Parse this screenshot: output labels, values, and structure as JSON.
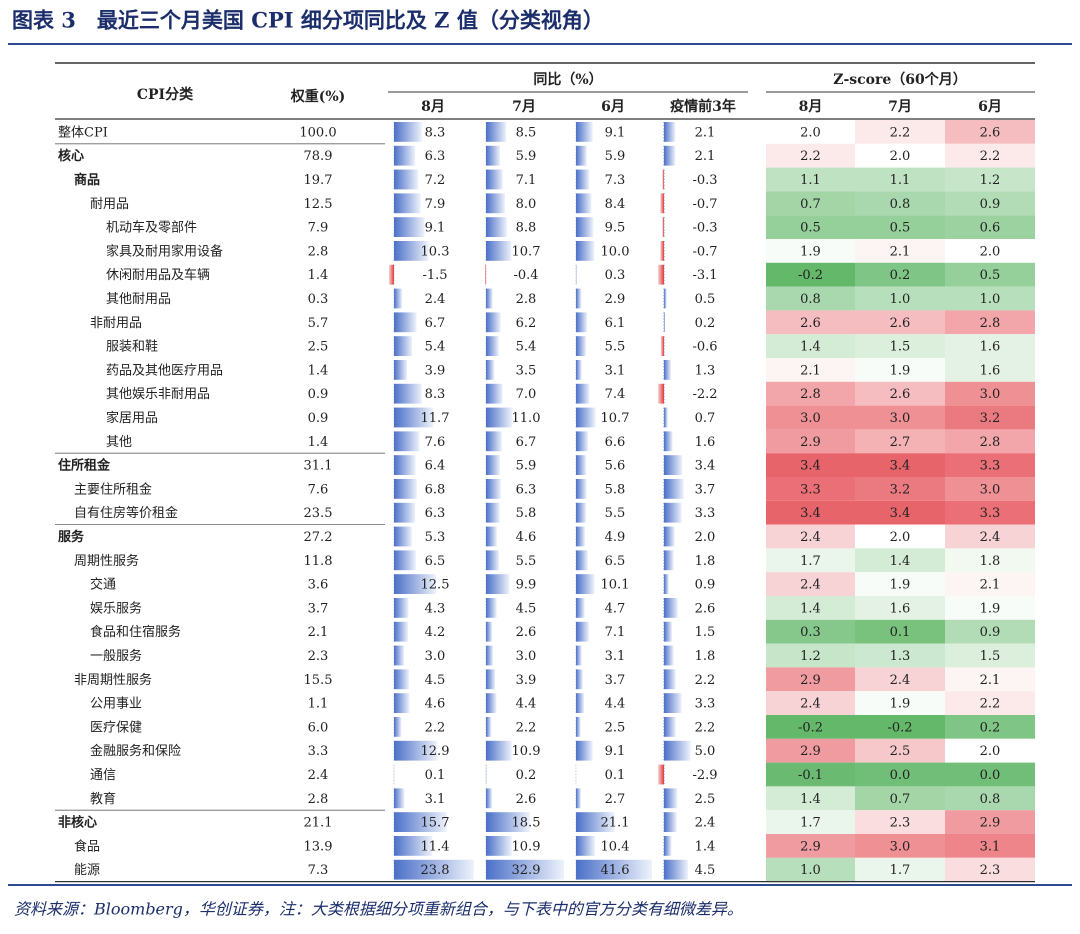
{
  "header": {
    "title": "图表 3　最近三个月美国 CPI 细分项同比及 Z 值（分类视角）"
  },
  "table": {
    "columns": {
      "category": "CPI分类",
      "weight": "权重(%)",
      "yoy": "同比（%）",
      "zscore": "Z-score（60个月）",
      "yoy_sub": [
        "8月",
        "7月",
        "6月",
        "疫情前3年"
      ],
      "z_sub": [
        "8月",
        "7月",
        "6月"
      ]
    },
    "rows": [
      [
        "整体CPI",
        "100.0",
        "8.3",
        "8.5",
        "9.1",
        "2.1",
        "2.0",
        "2.2",
        "2.6"
      ],
      [
        "核心",
        "78.9",
        "6.3",
        "5.9",
        "5.9",
        "2.1",
        "2.2",
        "2.0",
        "2.2"
      ],
      [
        "商品",
        "19.7",
        "7.2",
        "7.1",
        "7.3",
        "-0.3",
        "1.1",
        "1.1",
        "1.2"
      ],
      [
        "耐用品",
        "12.5",
        "7.9",
        "8.0",
        "8.4",
        "-0.7",
        "0.7",
        "0.8",
        "0.9"
      ],
      [
        "机动车及零部件",
        "7.9",
        "9.1",
        "8.8",
        "9.5",
        "-0.3",
        "0.5",
        "0.5",
        "0.6"
      ],
      [
        "家具及耐用家用设备",
        "2.8",
        "10.3",
        "10.7",
        "10.0",
        "-0.7",
        "1.9",
        "2.1",
        "2.0"
      ],
      [
        "休闲耐用品及车辆",
        "1.4",
        "-1.5",
        "-0.4",
        "0.3",
        "-3.1",
        "-0.2",
        "0.2",
        "0.5"
      ],
      [
        "其他耐用品",
        "0.3",
        "2.4",
        "2.8",
        "2.9",
        "0.5",
        "0.8",
        "1.0",
        "1.0"
      ],
      [
        "非耐用品",
        "5.7",
        "6.7",
        "6.2",
        "6.1",
        "0.2",
        "2.6",
        "2.6",
        "2.8"
      ],
      [
        "服装和鞋",
        "2.5",
        "5.4",
        "5.4",
        "5.5",
        "-0.6",
        "1.4",
        "1.5",
        "1.6"
      ],
      [
        "药品及其他医疗用品",
        "1.4",
        "3.9",
        "3.5",
        "3.1",
        "1.3",
        "2.1",
        "1.9",
        "1.6"
      ],
      [
        "其他娱乐非耐用品",
        "0.9",
        "8.3",
        "7.0",
        "7.4",
        "-2.2",
        "2.8",
        "2.6",
        "3.0"
      ],
      [
        "家居用品",
        "0.9",
        "11.7",
        "11.0",
        "10.7",
        "0.7",
        "3.0",
        "3.0",
        "3.2"
      ],
      [
        "其他",
        "1.4",
        "7.6",
        "6.7",
        "6.6",
        "1.6",
        "2.9",
        "2.7",
        "2.8"
      ],
      [
        "住所租金",
        "31.1",
        "6.4",
        "5.9",
        "5.6",
        "3.4",
        "3.4",
        "3.4",
        "3.3"
      ],
      [
        "主要住所租金",
        "7.6",
        "6.8",
        "6.3",
        "5.8",
        "3.7",
        "3.3",
        "3.2",
        "3.0"
      ],
      [
        "自有住房等价租金",
        "23.5",
        "6.3",
        "5.8",
        "5.5",
        "3.3",
        "3.4",
        "3.4",
        "3.3"
      ],
      [
        "服务",
        "27.2",
        "5.3",
        "4.6",
        "4.9",
        "2.0",
        "2.4",
        "2.0",
        "2.4"
      ],
      [
        "周期性服务",
        "11.8",
        "6.5",
        "5.5",
        "6.5",
        "1.8",
        "1.7",
        "1.4",
        "1.8"
      ],
      [
        "交通",
        "3.6",
        "12.5",
        "9.9",
        "10.1",
        "0.9",
        "2.4",
        "1.9",
        "2.1"
      ],
      [
        "娱乐服务",
        "3.7",
        "4.3",
        "4.5",
        "4.7",
        "2.6",
        "1.4",
        "1.6",
        "1.9"
      ],
      [
        "食品和住宿服务",
        "2.1",
        "4.2",
        "2.6",
        "7.1",
        "1.5",
        "0.3",
        "0.1",
        "0.9"
      ],
      [
        "一般服务",
        "2.3",
        "3.0",
        "3.0",
        "3.1",
        "1.8",
        "1.2",
        "1.3",
        "1.5"
      ],
      [
        "非周期性服务",
        "15.5",
        "4.5",
        "3.9",
        "3.7",
        "2.2",
        "2.9",
        "2.4",
        "2.1"
      ],
      [
        "公用事业",
        "1.1",
        "4.6",
        "4.4",
        "4.4",
        "3.3",
        "2.4",
        "1.9",
        "2.2"
      ],
      [
        "医疗保健",
        "6.0",
        "2.2",
        "2.2",
        "2.5",
        "2.2",
        "-0.2",
        "-0.2",
        "0.2"
      ],
      [
        "金融服务和保险",
        "3.3",
        "12.9",
        "10.9",
        "9.1",
        "5.0",
        "2.9",
        "2.5",
        "2.0"
      ],
      [
        "通信",
        "2.4",
        "0.1",
        "0.2",
        "0.1",
        "-2.9",
        "-0.1",
        "0.0",
        "0.0"
      ],
      [
        "教育",
        "2.8",
        "3.1",
        "2.6",
        "2.7",
        "2.5",
        "1.4",
        "0.7",
        "0.8"
      ],
      [
        "非核心",
        "21.1",
        "15.7",
        "18.5",
        "21.1",
        "2.4",
        "1.7",
        "2.3",
        "2.9"
      ],
      [
        "食品",
        "13.9",
        "11.4",
        "10.9",
        "10.4",
        "1.4",
        "2.9",
        "3.0",
        "3.1"
      ],
      [
        "能源",
        "7.3",
        "23.8",
        "32.9",
        "41.6",
        "4.5",
        "1.0",
        "1.7",
        "2.3"
      ]
    ]
  },
  "footer": "资料来源：Bloomberg，华创证券，注：大类根据细分项重新组合，与下表中的官方分类有细微差异。"
}
